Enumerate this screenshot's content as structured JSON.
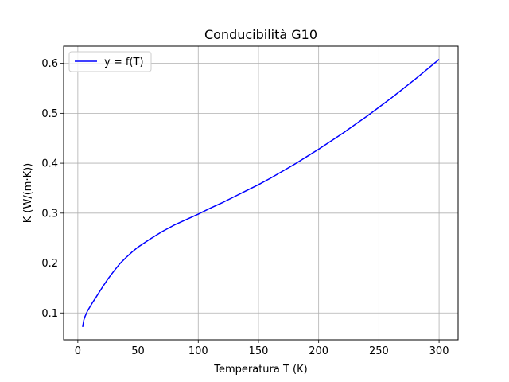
{
  "chart_data": {
    "type": "line",
    "title": "Conducibilità G10",
    "xlabel": "Temperatura T (K)",
    "ylabel": "K (W/(m·K))",
    "xlim": [
      -11.8,
      315.8
    ],
    "ylim": [
      0.0462,
      0.6345
    ],
    "xticks": [
      0,
      50,
      100,
      150,
      200,
      250,
      300
    ],
    "xtick_labels": [
      "0",
      "50",
      "100",
      "150",
      "200",
      "250",
      "300"
    ],
    "yticks": [
      0.1,
      0.2,
      0.3,
      0.4,
      0.5,
      0.6
    ],
    "ytick_labels": [
      "0.1",
      "0.2",
      "0.3",
      "0.4",
      "0.5",
      "0.6"
    ],
    "grid": true,
    "legend_position": "top-left",
    "series": [
      {
        "name": "y = f(T)",
        "color": "#0000ff",
        "x": [
          4,
          5,
          6,
          8,
          10,
          12,
          15,
          20,
          25,
          30,
          35,
          40,
          45,
          50,
          60,
          70,
          80,
          90,
          100,
          110,
          120,
          130,
          140,
          150,
          160,
          170,
          180,
          190,
          200,
          210,
          220,
          230,
          240,
          250,
          260,
          270,
          280,
          290,
          300
        ],
        "y": [
          0.072,
          0.086,
          0.093,
          0.104,
          0.112,
          0.12,
          0.131,
          0.15,
          0.168,
          0.184,
          0.199,
          0.211,
          0.222,
          0.232,
          0.248,
          0.263,
          0.276,
          0.287,
          0.298,
          0.31,
          0.321,
          0.333,
          0.345,
          0.357,
          0.37,
          0.384,
          0.398,
          0.413,
          0.428,
          0.444,
          0.46,
          0.477,
          0.494,
          0.512,
          0.53,
          0.549,
          0.568,
          0.588,
          0.608
        ]
      }
    ]
  }
}
